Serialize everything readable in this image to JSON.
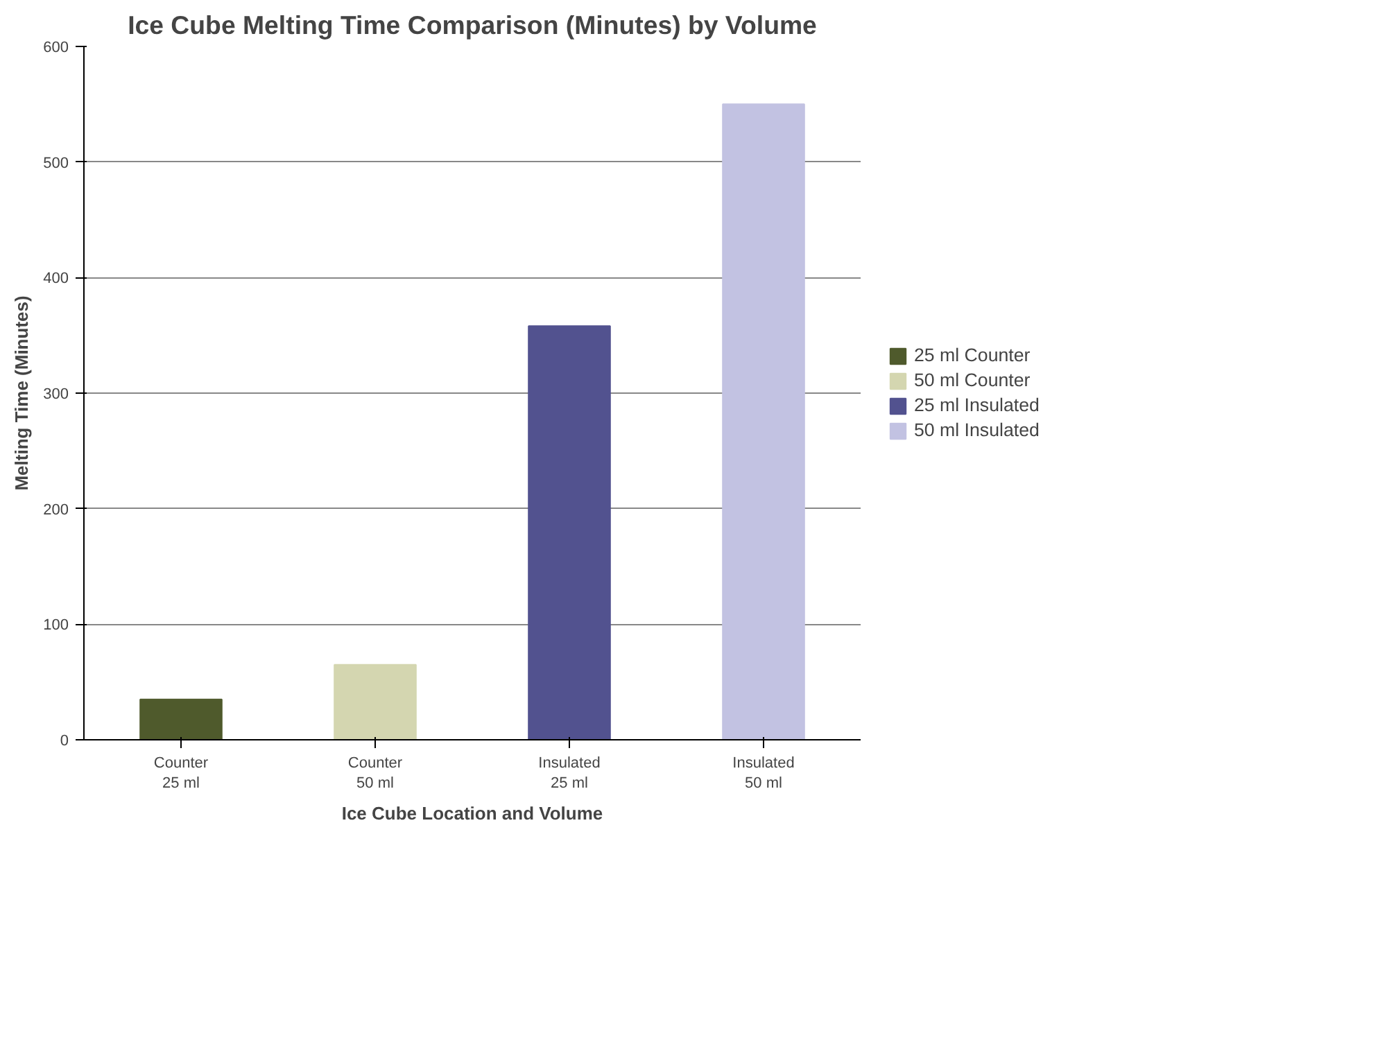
{
  "chart_data": {
    "type": "bar",
    "title": "Ice Cube Melting Time Comparison (Minutes) by Volume",
    "xlabel": "Ice Cube Location and Volume",
    "ylabel": "Melting Time (Minutes)",
    "categories": [
      "Counter\n25 ml",
      "Counter\n50 ml",
      "Insulated\n25 ml",
      "Insulated\n50 ml"
    ],
    "series": [
      {
        "name": "25 ml Counter",
        "color": "#4f5a2c",
        "values": [
          35,
          null,
          null,
          null
        ]
      },
      {
        "name": "50 ml Counter",
        "color": "#d4d6b0",
        "values": [
          null,
          65,
          null,
          null
        ]
      },
      {
        "name": "25 ml Insulated",
        "color": "#52528f",
        "values": [
          null,
          null,
          358,
          null
        ]
      },
      {
        "name": "50 ml Insulated",
        "color": "#c2c2e2",
        "values": [
          null,
          null,
          null,
          550
        ]
      }
    ],
    "ylim": [
      0,
      600
    ],
    "yticks": [
      0,
      100,
      200,
      300,
      400,
      500,
      600
    ],
    "grid": "y",
    "legend": "right"
  }
}
